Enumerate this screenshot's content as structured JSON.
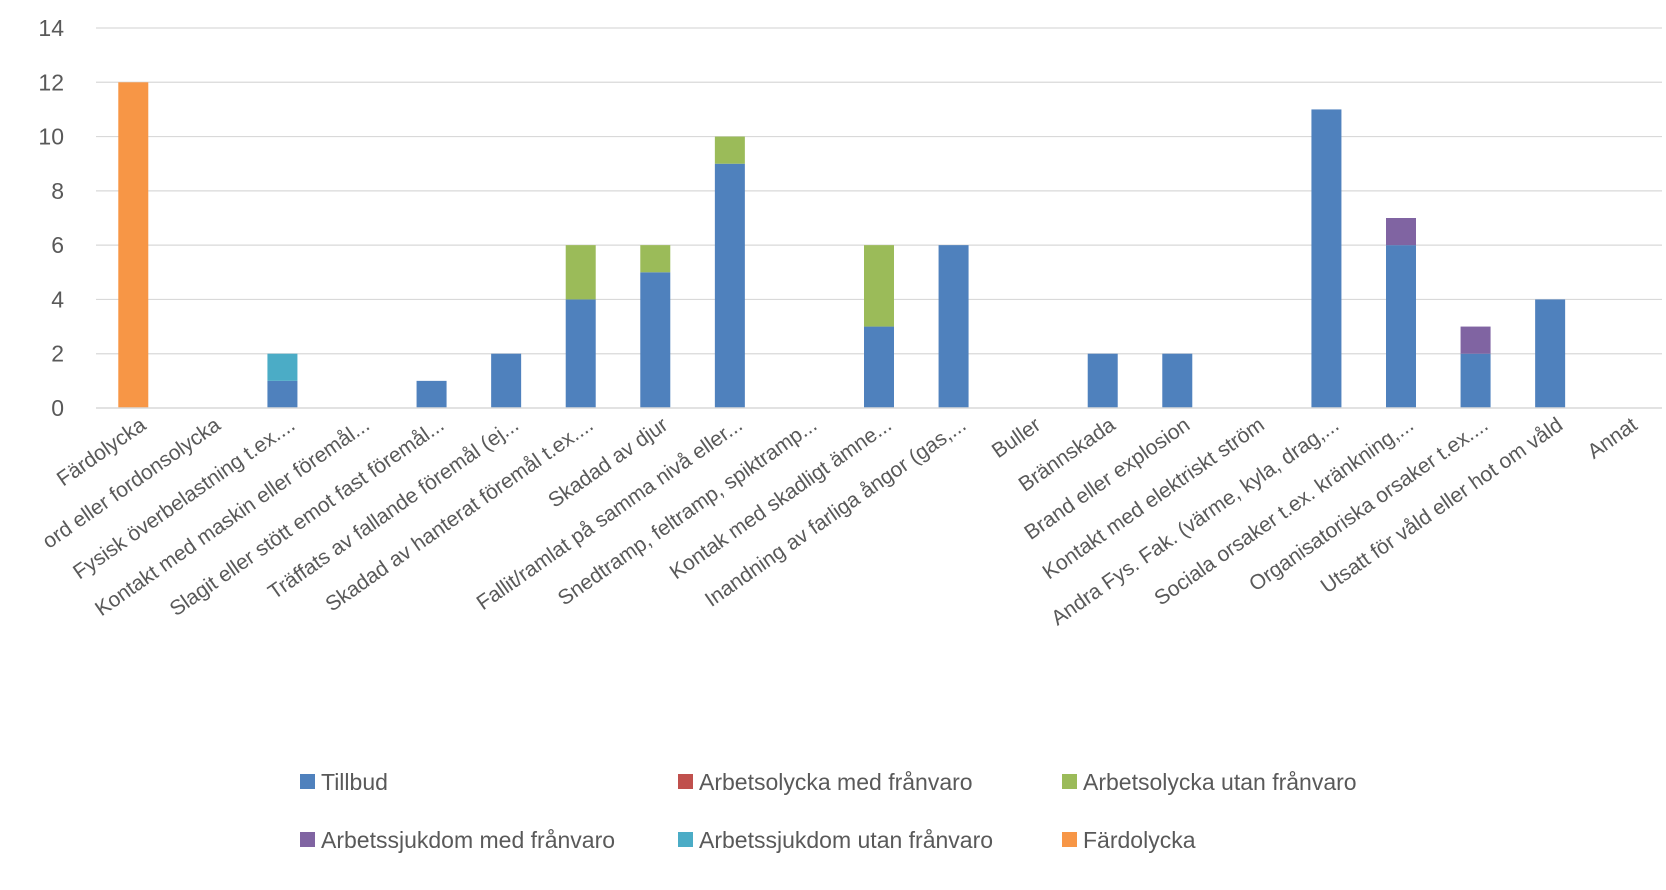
{
  "chart_data": {
    "type": "bar",
    "stacked": true,
    "ylim": [
      0,
      14
    ],
    "yticks": [
      0,
      2,
      4,
      6,
      8,
      10,
      12,
      14
    ],
    "grid": true,
    "legend_position": "bottom",
    "categories": [
      "Färdolycka",
      "ord eller fordonsolycka",
      "Fysisk överbelastning t.ex....",
      "Kontakt med maskin eller föremål...",
      "Slagit eller stött emot fast föremål...",
      "Träffats av fallande föremål (ej...",
      "Skadad av hanterat föremål  t.ex....",
      "Skadad av djur",
      "Fallit/ramlat på samma nivå eller...",
      "Snedtramp, feltramp, spiktramp...",
      "Kontak med skadligt ämne...",
      "Inandning av farliga ångor (gas,...",
      "Buller",
      "Brännskada",
      "Brand eller explosion",
      "Kontakt med elektriskt ström",
      "Andra Fys. Fak. (värme, kyla, drag,...",
      "Sociala orsaker t.ex. kränkning,...",
      "Organisatoriska orsaker t.ex....",
      "Utsatt för våld eller hot om våld",
      "Annat"
    ],
    "series": [
      {
        "name": "Tillbud",
        "color": "#4F81BD",
        "values": [
          0,
          0,
          1,
          0,
          1,
          2,
          4,
          5,
          9,
          0,
          3,
          6,
          0,
          2,
          2,
          0,
          11,
          6,
          2,
          4,
          0
        ]
      },
      {
        "name": "Arbetsolycka med frånvaro",
        "color": "#C0504D",
        "values": [
          0,
          0,
          0,
          0,
          0,
          0,
          0,
          0,
          0,
          0,
          0,
          0,
          0,
          0,
          0,
          0,
          0,
          0,
          0,
          0,
          0
        ]
      },
      {
        "name": "Arbetsolycka utan frånvaro",
        "color": "#9BBB59",
        "values": [
          0,
          0,
          0,
          0,
          0,
          0,
          2,
          1,
          1,
          0,
          3,
          0,
          0,
          0,
          0,
          0,
          0,
          0,
          0,
          0,
          0
        ]
      },
      {
        "name": "Arbetssjukdom med frånvaro",
        "color": "#8064A2",
        "values": [
          0,
          0,
          0,
          0,
          0,
          0,
          0,
          0,
          0,
          0,
          0,
          0,
          0,
          0,
          0,
          0,
          0,
          1,
          1,
          0,
          0
        ]
      },
      {
        "name": "Arbetssjukdom utan frånvaro",
        "color": "#4BACC6",
        "values": [
          0,
          0,
          1,
          0,
          0,
          0,
          0,
          0,
          0,
          0,
          0,
          0,
          0,
          0,
          0,
          0,
          0,
          0,
          0,
          0,
          0
        ]
      },
      {
        "name": "Färdolycka",
        "color": "#F79646",
        "values": [
          12,
          0,
          0,
          0,
          0,
          0,
          0,
          0,
          0,
          0,
          0,
          0,
          0,
          0,
          0,
          0,
          0,
          0,
          0,
          0,
          0
        ]
      }
    ]
  }
}
